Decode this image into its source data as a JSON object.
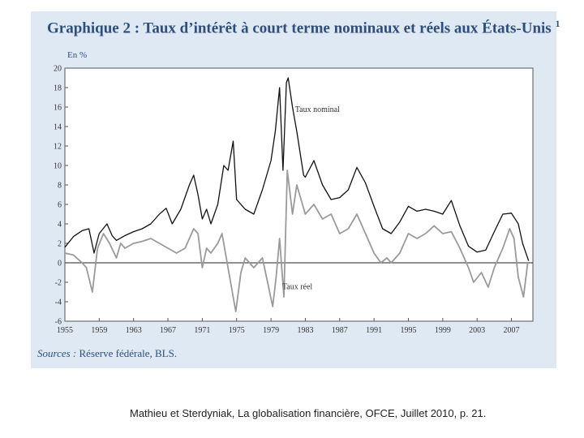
{
  "title": "Graphique 2 : Taux d’intérêt à court terme nominaux et réels aux États-Unis",
  "title_note": "1",
  "unit": "En %",
  "sources_label": "Sources :",
  "sources_text": "Réserve fédérale, BLS.",
  "caption": "Mathieu et Sterdyniak, La globalisation financière, OFCE, Juillet 2010, p. 21.",
  "colors": {
    "nominal": "#111111",
    "real": "#9a9a9a",
    "title": "#2c4f7f",
    "panel": "#dfe9f4"
  },
  "chart_data": {
    "type": "line",
    "xlim": [
      1955,
      2009.5
    ],
    "ylim": [
      -6,
      20
    ],
    "y_ticks": [
      -6,
      -4,
      -2,
      0,
      2,
      4,
      6,
      8,
      10,
      12,
      14,
      16,
      18,
      20
    ],
    "x_ticks": [
      1955,
      1959,
      1963,
      1967,
      1971,
      1975,
      1979,
      1983,
      1987,
      1991,
      1995,
      1999,
      2003,
      2007
    ],
    "zero_line": true,
    "series": [
      {
        "name": "Taux nominal",
        "points": [
          [
            1955,
            1.6
          ],
          [
            1956,
            2.7
          ],
          [
            1957,
            3.3
          ],
          [
            1957.8,
            3.5
          ],
          [
            1958.4,
            1.0
          ],
          [
            1959,
            3.0
          ],
          [
            1959.9,
            4.0
          ],
          [
            1960.5,
            2.8
          ],
          [
            1961,
            2.3
          ],
          [
            1962,
            2.8
          ],
          [
            1963,
            3.2
          ],
          [
            1964,
            3.5
          ],
          [
            1965,
            4.0
          ],
          [
            1966,
            5.0
          ],
          [
            1966.8,
            5.6
          ],
          [
            1967.5,
            4.0
          ],
          [
            1968.5,
            5.5
          ],
          [
            1969.5,
            8.0
          ],
          [
            1970,
            9.0
          ],
          [
            1970.5,
            7.0
          ],
          [
            1971,
            4.5
          ],
          [
            1971.5,
            5.5
          ],
          [
            1972,
            4.0
          ],
          [
            1972.8,
            6.0
          ],
          [
            1973.5,
            10.0
          ],
          [
            1974,
            9.5
          ],
          [
            1974.6,
            12.5
          ],
          [
            1975,
            6.5
          ],
          [
            1976,
            5.5
          ],
          [
            1977,
            5.0
          ],
          [
            1978,
            7.5
          ],
          [
            1979,
            10.5
          ],
          [
            1979.5,
            13.5
          ],
          [
            1980,
            18.0
          ],
          [
            1980.4,
            9.5
          ],
          [
            1980.8,
            18.5
          ],
          [
            1981,
            19.0
          ],
          [
            1981.5,
            16.0
          ],
          [
            1982,
            13.5
          ],
          [
            1982.8,
            9.0
          ],
          [
            1983,
            8.8
          ],
          [
            1984,
            10.5
          ],
          [
            1985,
            8.0
          ],
          [
            1986,
            6.5
          ],
          [
            1987,
            6.7
          ],
          [
            1988,
            7.5
          ],
          [
            1989,
            9.8
          ],
          [
            1990,
            8.2
          ],
          [
            1991,
            5.8
          ],
          [
            1992,
            3.5
          ],
          [
            1993,
            3.0
          ],
          [
            1994,
            4.2
          ],
          [
            1995,
            5.8
          ],
          [
            1996,
            5.3
          ],
          [
            1997,
            5.5
          ],
          [
            1998,
            5.3
          ],
          [
            1999,
            5.0
          ],
          [
            2000,
            6.4
          ],
          [
            2001,
            3.8
          ],
          [
            2002,
            1.7
          ],
          [
            2003,
            1.1
          ],
          [
            2004,
            1.3
          ],
          [
            2005,
            3.2
          ],
          [
            2006,
            5.0
          ],
          [
            2007,
            5.1
          ],
          [
            2007.8,
            4.0
          ],
          [
            2008.3,
            2.0
          ],
          [
            2009,
            0.2
          ]
        ]
      },
      {
        "name": "Taux réel",
        "points": [
          [
            1955,
            1.0
          ],
          [
            1956,
            0.8
          ],
          [
            1957,
            0.0
          ],
          [
            1957.5,
            -0.5
          ],
          [
            1958.2,
            -3.0
          ],
          [
            1958.8,
            1.5
          ],
          [
            1959.5,
            3.0
          ],
          [
            1960.2,
            2.0
          ],
          [
            1961,
            0.5
          ],
          [
            1961.5,
            2.0
          ],
          [
            1962,
            1.5
          ],
          [
            1963,
            2.0
          ],
          [
            1964,
            2.2
          ],
          [
            1965,
            2.5
          ],
          [
            1966,
            2.0
          ],
          [
            1967,
            1.5
          ],
          [
            1968,
            1.0
          ],
          [
            1969,
            1.5
          ],
          [
            1970,
            3.5
          ],
          [
            1970.5,
            3.0
          ],
          [
            1971,
            -0.5
          ],
          [
            1971.5,
            1.5
          ],
          [
            1972,
            1.0
          ],
          [
            1972.8,
            2.0
          ],
          [
            1973.3,
            3.0
          ],
          [
            1973.8,
            0.5
          ],
          [
            1974.5,
            -3.0
          ],
          [
            1974.9,
            -5.0
          ],
          [
            1975.5,
            -1.0
          ],
          [
            1976,
            0.5
          ],
          [
            1977,
            -0.5
          ],
          [
            1978,
            0.5
          ],
          [
            1978.6,
            -2.0
          ],
          [
            1979.2,
            -4.5
          ],
          [
            1979.6,
            -1.5
          ],
          [
            1980,
            2.5
          ],
          [
            1980.5,
            -3.5
          ],
          [
            1980.9,
            9.5
          ],
          [
            1981.5,
            5.0
          ],
          [
            1982,
            8.0
          ],
          [
            1983,
            5.0
          ],
          [
            1984,
            6.0
          ],
          [
            1985,
            4.5
          ],
          [
            1986,
            5.0
          ],
          [
            1987,
            3.0
          ],
          [
            1988,
            3.5
          ],
          [
            1989,
            5.0
          ],
          [
            1990,
            3.0
          ],
          [
            1991,
            1.0
          ],
          [
            1991.8,
            0.0
          ],
          [
            1992.5,
            0.5
          ],
          [
            1993,
            0.0
          ],
          [
            1994,
            1.0
          ],
          [
            1995,
            3.0
          ],
          [
            1996,
            2.5
          ],
          [
            1997,
            3.0
          ],
          [
            1998,
            3.8
          ],
          [
            1999,
            3.0
          ],
          [
            2000,
            3.2
          ],
          [
            2001,
            1.5
          ],
          [
            2002,
            -0.5
          ],
          [
            2002.6,
            -2.0
          ],
          [
            2003.5,
            -1.0
          ],
          [
            2004.3,
            -2.5
          ],
          [
            2005,
            -0.5
          ],
          [
            2006,
            1.5
          ],
          [
            2006.8,
            3.5
          ],
          [
            2007.3,
            2.5
          ],
          [
            2007.8,
            -1.5
          ],
          [
            2008.4,
            -3.5
          ],
          [
            2008.9,
            0.0
          ]
        ]
      }
    ],
    "annotations": [
      {
        "text": "Taux nominal",
        "x": 1981.8,
        "y": 15.5
      },
      {
        "text": "Taux réel",
        "x": 1980.3,
        "y": -2.7
      }
    ]
  }
}
